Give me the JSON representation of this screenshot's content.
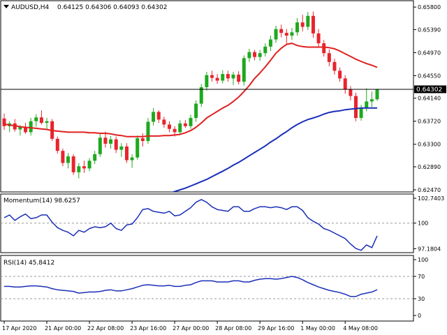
{
  "chart_data": [
    {
      "type": "candlestick",
      "symbol_info": "AUDUSD,H4",
      "ohlc_info": "0.64125 0.64306 0.64093 0.64302",
      "current_price_label": "0.64302",
      "current_price": 0.64302,
      "y_ticks": [
        "0.65800",
        "0.65390",
        "0.64970",
        "0.64550",
        "0.64140",
        "0.63720",
        "0.63300",
        "0.62890",
        "0.62470"
      ],
      "ylim": [
        0.6247,
        0.6584
      ],
      "candles": [
        {
          "o": 0.6377,
          "h": 0.6386,
          "l": 0.6356,
          "c": 0.6363
        },
        {
          "o": 0.6363,
          "h": 0.6372,
          "l": 0.6352,
          "c": 0.6368
        },
        {
          "o": 0.6368,
          "h": 0.6376,
          "l": 0.6353,
          "c": 0.6357
        },
        {
          "o": 0.6357,
          "h": 0.6365,
          "l": 0.6346,
          "c": 0.6362
        },
        {
          "o": 0.6362,
          "h": 0.6369,
          "l": 0.6349,
          "c": 0.6352
        },
        {
          "o": 0.6352,
          "h": 0.6378,
          "l": 0.6346,
          "c": 0.6372
        },
        {
          "o": 0.6372,
          "h": 0.6385,
          "l": 0.6362,
          "c": 0.6379
        },
        {
          "o": 0.6379,
          "h": 0.6392,
          "l": 0.6366,
          "c": 0.6369
        },
        {
          "o": 0.6369,
          "h": 0.6378,
          "l": 0.6358,
          "c": 0.6372
        },
        {
          "o": 0.6372,
          "h": 0.6376,
          "l": 0.6336,
          "c": 0.634
        },
        {
          "o": 0.634,
          "h": 0.6344,
          "l": 0.6313,
          "c": 0.6318
        },
        {
          "o": 0.6318,
          "h": 0.6322,
          "l": 0.629,
          "c": 0.6296
        },
        {
          "o": 0.6296,
          "h": 0.6314,
          "l": 0.6286,
          "c": 0.6308
        },
        {
          "o": 0.6308,
          "h": 0.6312,
          "l": 0.6274,
          "c": 0.6279
        },
        {
          "o": 0.6279,
          "h": 0.6296,
          "l": 0.6268,
          "c": 0.629
        },
        {
          "o": 0.629,
          "h": 0.63,
          "l": 0.6278,
          "c": 0.6286
        },
        {
          "o": 0.6286,
          "h": 0.6305,
          "l": 0.6281,
          "c": 0.63
        },
        {
          "o": 0.63,
          "h": 0.6318,
          "l": 0.6294,
          "c": 0.6312
        },
        {
          "o": 0.6312,
          "h": 0.635,
          "l": 0.6307,
          "c": 0.6342
        },
        {
          "o": 0.6342,
          "h": 0.6353,
          "l": 0.6324,
          "c": 0.6331
        },
        {
          "o": 0.6331,
          "h": 0.6345,
          "l": 0.6322,
          "c": 0.6339
        },
        {
          "o": 0.6339,
          "h": 0.6344,
          "l": 0.6314,
          "c": 0.632
        },
        {
          "o": 0.632,
          "h": 0.6332,
          "l": 0.6307,
          "c": 0.6326
        },
        {
          "o": 0.6326,
          "h": 0.6332,
          "l": 0.6296,
          "c": 0.6301
        },
        {
          "o": 0.6301,
          "h": 0.6312,
          "l": 0.6287,
          "c": 0.6306
        },
        {
          "o": 0.6306,
          "h": 0.6346,
          "l": 0.6302,
          "c": 0.6341
        },
        {
          "o": 0.6341,
          "h": 0.635,
          "l": 0.6326,
          "c": 0.6336
        },
        {
          "o": 0.6336,
          "h": 0.6378,
          "l": 0.6331,
          "c": 0.6371
        },
        {
          "o": 0.6371,
          "h": 0.6396,
          "l": 0.6364,
          "c": 0.6389
        },
        {
          "o": 0.6389,
          "h": 0.6392,
          "l": 0.6369,
          "c": 0.6375
        },
        {
          "o": 0.6375,
          "h": 0.638,
          "l": 0.636,
          "c": 0.6366
        },
        {
          "o": 0.6366,
          "h": 0.6372,
          "l": 0.6352,
          "c": 0.6358
        },
        {
          "o": 0.6358,
          "h": 0.6363,
          "l": 0.6344,
          "c": 0.6352
        },
        {
          "o": 0.6352,
          "h": 0.6374,
          "l": 0.6347,
          "c": 0.6368
        },
        {
          "o": 0.6368,
          "h": 0.6374,
          "l": 0.636,
          "c": 0.6363
        },
        {
          "o": 0.6363,
          "h": 0.6384,
          "l": 0.6358,
          "c": 0.6378
        },
        {
          "o": 0.6378,
          "h": 0.641,
          "l": 0.6371,
          "c": 0.6404
        },
        {
          "o": 0.6404,
          "h": 0.644,
          "l": 0.6398,
          "c": 0.6434
        },
        {
          "o": 0.6434,
          "h": 0.6462,
          "l": 0.6428,
          "c": 0.6456
        },
        {
          "o": 0.6456,
          "h": 0.6464,
          "l": 0.6444,
          "c": 0.6451
        },
        {
          "o": 0.6451,
          "h": 0.6458,
          "l": 0.644,
          "c": 0.6446
        },
        {
          "o": 0.6446,
          "h": 0.6465,
          "l": 0.6441,
          "c": 0.6458
        },
        {
          "o": 0.6458,
          "h": 0.6464,
          "l": 0.6444,
          "c": 0.645
        },
        {
          "o": 0.645,
          "h": 0.6462,
          "l": 0.6438,
          "c": 0.6457
        },
        {
          "o": 0.6457,
          "h": 0.6463,
          "l": 0.6439,
          "c": 0.6444
        },
        {
          "o": 0.6444,
          "h": 0.6492,
          "l": 0.6437,
          "c": 0.6487
        },
        {
          "o": 0.6487,
          "h": 0.6504,
          "l": 0.648,
          "c": 0.6498
        },
        {
          "o": 0.6498,
          "h": 0.6502,
          "l": 0.6483,
          "c": 0.6489
        },
        {
          "o": 0.6489,
          "h": 0.6502,
          "l": 0.6482,
          "c": 0.6496
        },
        {
          "o": 0.6496,
          "h": 0.6514,
          "l": 0.649,
          "c": 0.6508
        },
        {
          "o": 0.6508,
          "h": 0.6528,
          "l": 0.65,
          "c": 0.6521
        },
        {
          "o": 0.6521,
          "h": 0.6546,
          "l": 0.6515,
          "c": 0.654
        },
        {
          "o": 0.654,
          "h": 0.6548,
          "l": 0.6525,
          "c": 0.6533
        },
        {
          "o": 0.6533,
          "h": 0.654,
          "l": 0.6511,
          "c": 0.6528
        },
        {
          "o": 0.6528,
          "h": 0.6542,
          "l": 0.652,
          "c": 0.6534
        },
        {
          "o": 0.6534,
          "h": 0.656,
          "l": 0.6528,
          "c": 0.6552
        },
        {
          "o": 0.6552,
          "h": 0.6566,
          "l": 0.6536,
          "c": 0.6544
        },
        {
          "o": 0.6544,
          "h": 0.6571,
          "l": 0.6538,
          "c": 0.6564
        },
        {
          "o": 0.6564,
          "h": 0.6572,
          "l": 0.6524,
          "c": 0.6532
        },
        {
          "o": 0.6532,
          "h": 0.654,
          "l": 0.6508,
          "c": 0.6514
        },
        {
          "o": 0.6514,
          "h": 0.652,
          "l": 0.649,
          "c": 0.6496
        },
        {
          "o": 0.6496,
          "h": 0.6503,
          "l": 0.6472,
          "c": 0.648
        },
        {
          "o": 0.648,
          "h": 0.6486,
          "l": 0.6457,
          "c": 0.6464
        },
        {
          "o": 0.6464,
          "h": 0.647,
          "l": 0.6444,
          "c": 0.645
        },
        {
          "o": 0.645,
          "h": 0.6456,
          "l": 0.6422,
          "c": 0.643
        },
        {
          "o": 0.643,
          "h": 0.6436,
          "l": 0.641,
          "c": 0.6418
        },
        {
          "o": 0.6418,
          "h": 0.6424,
          "l": 0.6372,
          "c": 0.6378
        },
        {
          "o": 0.6378,
          "h": 0.6402,
          "l": 0.6373,
          "c": 0.6396
        },
        {
          "o": 0.6396,
          "h": 0.6432,
          "l": 0.639,
          "c": 0.6408
        },
        {
          "o": 0.6408,
          "h": 0.6426,
          "l": 0.6398,
          "c": 0.6412
        },
        {
          "o": 0.6412,
          "h": 0.6431,
          "l": 0.6409,
          "c": 0.643
        }
      ],
      "ma_red": [
        0.6367,
        0.6365,
        0.6364,
        0.6362,
        0.6361,
        0.636,
        0.6359,
        0.6358,
        0.6357,
        0.6355,
        0.6354,
        0.6353,
        0.6352,
        0.6352,
        0.6352,
        0.6352,
        0.6351,
        0.6351,
        0.635,
        0.635,
        0.6349,
        0.6347,
        0.6346,
        0.6344,
        0.6344,
        0.6344,
        0.6344,
        0.6345,
        0.6345,
        0.6345,
        0.6346,
        0.6346,
        0.6347,
        0.6348,
        0.6351,
        0.6355,
        0.6361,
        0.6369,
        0.6378,
        0.6384,
        0.639,
        0.6396,
        0.6401,
        0.6408,
        0.6416,
        0.6426,
        0.6437,
        0.645,
        0.646,
        0.6471,
        0.6483,
        0.6496,
        0.6505,
        0.6512,
        0.6514,
        0.651,
        0.6508,
        0.6507,
        0.6507,
        0.6507,
        0.6507,
        0.6506,
        0.6504,
        0.65,
        0.6495,
        0.649,
        0.6485,
        0.6481,
        0.6477,
        0.6474,
        0.647
      ],
      "ma_blue": [
        0.6148,
        0.6151,
        0.6154,
        0.6157,
        0.616,
        0.6163,
        0.6166,
        0.6169,
        0.6172,
        0.6175,
        0.6178,
        0.6181,
        0.6184,
        0.6187,
        0.619,
        0.6193,
        0.6196,
        0.6199,
        0.6202,
        0.6205,
        0.6208,
        0.6211,
        0.6214,
        0.6217,
        0.622,
        0.6223,
        0.6226,
        0.6229,
        0.6232,
        0.6235,
        0.6238,
        0.6241,
        0.6244,
        0.6247,
        0.625,
        0.6254,
        0.6258,
        0.6262,
        0.6266,
        0.6271,
        0.6276,
        0.6281,
        0.6286,
        0.6292,
        0.6297,
        0.6303,
        0.6309,
        0.6315,
        0.6321,
        0.6327,
        0.6334,
        0.634,
        0.6347,
        0.6353,
        0.636,
        0.6366,
        0.6371,
        0.6375,
        0.6378,
        0.6381,
        0.6385,
        0.6388,
        0.639,
        0.6391,
        0.6393,
        0.6394,
        0.6395,
        0.6396,
        0.6396,
        0.6396,
        0.6396
      ],
      "x_labels": [
        "17 Apr 2020",
        "21 Apr 00:00",
        "22 Apr 08:00",
        "23 Apr 16:00",
        "27 Apr 00:00",
        "28 Apr 08:00",
        "29 Apr 16:00",
        "1 May 00:00",
        "4 May 08:00"
      ],
      "x_label_index": [
        0,
        8,
        16,
        24,
        32,
        40,
        48,
        56,
        64
      ]
    },
    {
      "type": "line",
      "title": "Momentum(14) 98.6257",
      "y_ticks": [
        "102.7403",
        "100",
        "97.1804"
      ],
      "y_tick_values": [
        102.7403,
        100,
        97.1804
      ],
      "ylim": [
        96.9,
        102.9
      ],
      "values": [
        100.6,
        100.9,
        100.3,
        100.7,
        101.0,
        100.5,
        100.6,
        100.9,
        100.9,
        100.1,
        99.5,
        99.2,
        99.0,
        98.6,
        99.2,
        99.0,
        99.4,
        99.6,
        99.5,
        99.6,
        100.0,
        99.4,
        99.2,
        99.8,
        99.9,
        100.6,
        101.5,
        101.6,
        101.3,
        101.2,
        101.1,
        101.3,
        100.8,
        100.9,
        101.3,
        101.7,
        102.3,
        102.6,
        102.3,
        101.8,
        101.5,
        101.4,
        101.3,
        101.8,
        101.8,
        101.3,
        101.3,
        101.6,
        101.8,
        101.8,
        101.7,
        101.8,
        101.7,
        101.5,
        101.8,
        101.8,
        101.4,
        100.6,
        100.2,
        99.9,
        99.4,
        99.2,
        98.9,
        98.6,
        98.3,
        97.7,
        97.2,
        97.0,
        97.6,
        97.3,
        98.6
      ]
    },
    {
      "type": "line",
      "title": "RSI(14) 45.8412",
      "y_ticks": [
        "100",
        "70",
        "30",
        "0"
      ],
      "y_tick_values": [
        100,
        70,
        30,
        0
      ],
      "ylim": [
        0,
        100
      ],
      "values": [
        52,
        52,
        51,
        51,
        52,
        53,
        53,
        52,
        51,
        48,
        46,
        45,
        44,
        43,
        40,
        41,
        42,
        42,
        43,
        45,
        46,
        44,
        44,
        46,
        48,
        51,
        54,
        55,
        54,
        53,
        53,
        54,
        52,
        52,
        54,
        55,
        59,
        62,
        62,
        62,
        60,
        60,
        60,
        62,
        62,
        60,
        60,
        63,
        65,
        66,
        66,
        65,
        66,
        68,
        70,
        68,
        64,
        59,
        55,
        51,
        48,
        45,
        43,
        41,
        38,
        34,
        34,
        38,
        40,
        42,
        46
      ]
    }
  ]
}
